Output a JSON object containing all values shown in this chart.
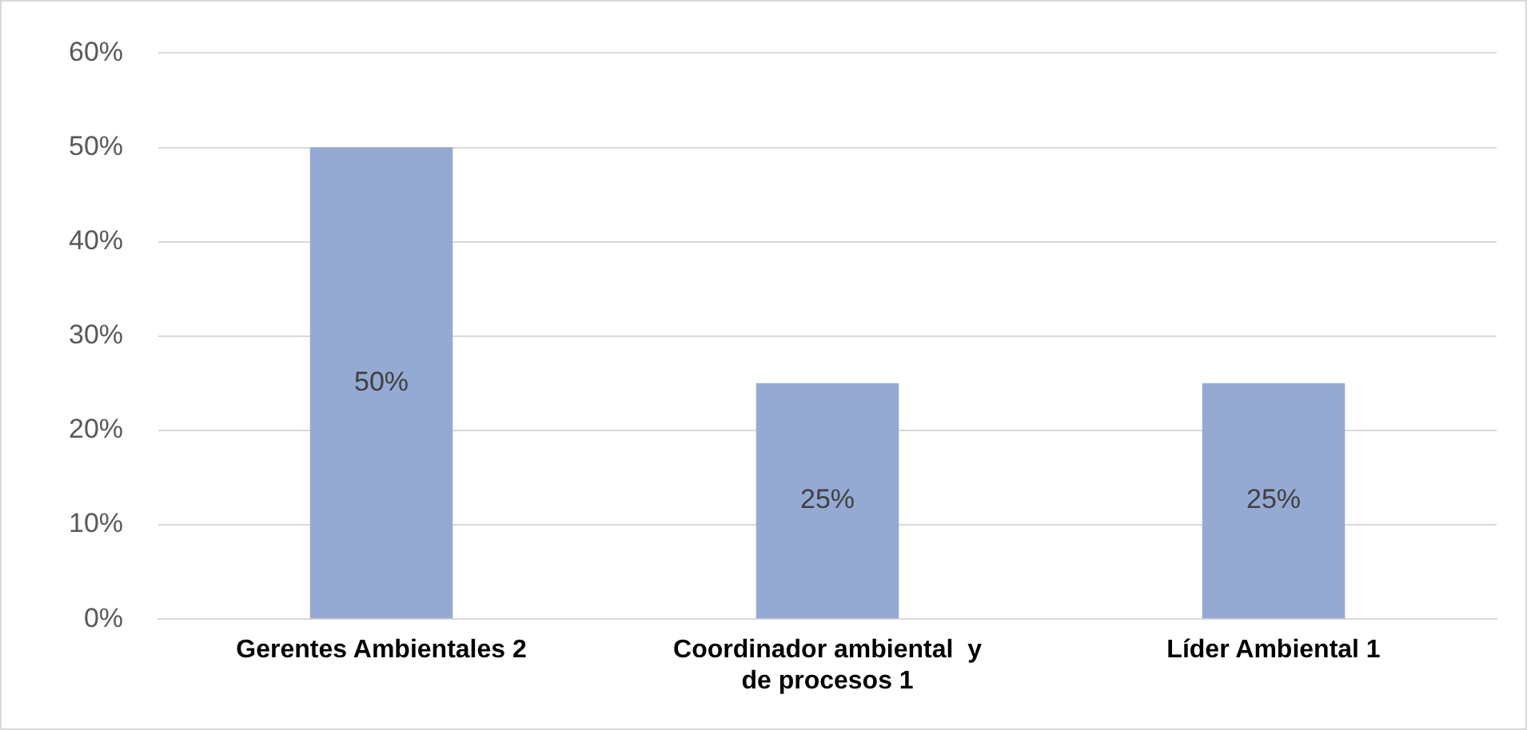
{
  "chart_data": {
    "type": "bar",
    "categories": [
      "Gerentes Ambientales 2",
      "Coordinador ambiental  y de procesos 1",
      "Líder Ambiental 1"
    ],
    "values": [
      50,
      25,
      25
    ],
    "value_labels": [
      "50%",
      "25%",
      "25%"
    ],
    "color": "#95aad3",
    "ylim": [
      0,
      60
    ],
    "yticks": [
      {
        "value": 0,
        "label": "0%"
      },
      {
        "value": 10,
        "label": "10%"
      },
      {
        "value": 20,
        "label": "20%"
      },
      {
        "value": 30,
        "label": "30%"
      },
      {
        "value": 40,
        "label": "40%"
      },
      {
        "value": 50,
        "label": "50%"
      },
      {
        "value": 60,
        "label": "60%"
      }
    ],
    "grid": "y",
    "legend": false
  }
}
